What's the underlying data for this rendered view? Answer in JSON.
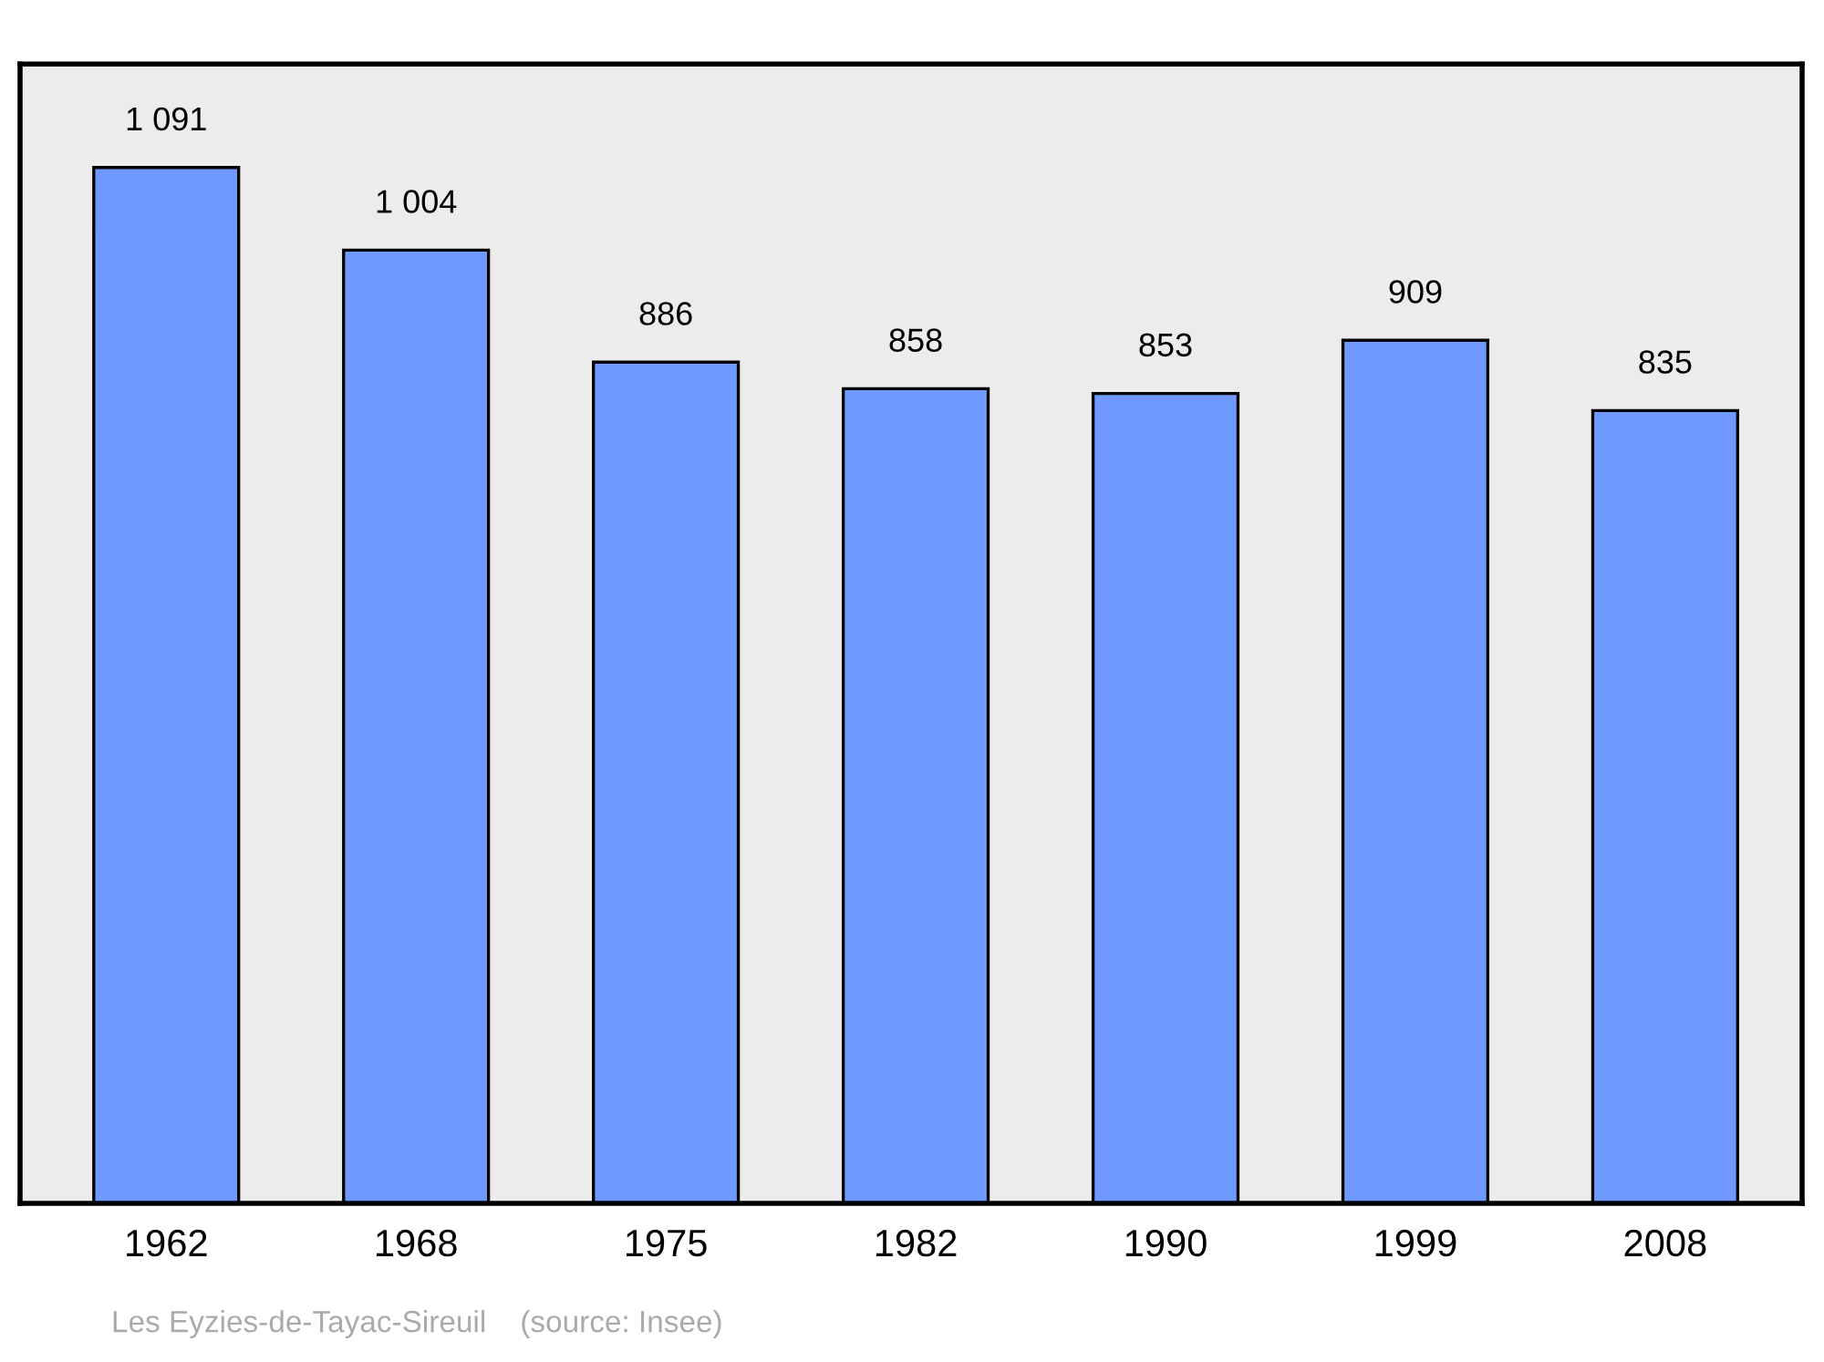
{
  "chart_data": {
    "type": "bar",
    "categories": [
      "1962",
      "1968",
      "1975",
      "1982",
      "1990",
      "1999",
      "2008"
    ],
    "values": [
      1091,
      1004,
      886,
      858,
      853,
      909,
      835
    ],
    "value_labels": [
      "1 091",
      "1 004",
      "886",
      "858",
      "853",
      "909",
      "835"
    ],
    "color": "#7099ff",
    "ylim": [
      0,
      1200
    ],
    "tick_labels": "x",
    "annotations": [
      "Les Eyzies-de-Tayac-Sireuil    (source: Insee)"
    ]
  }
}
